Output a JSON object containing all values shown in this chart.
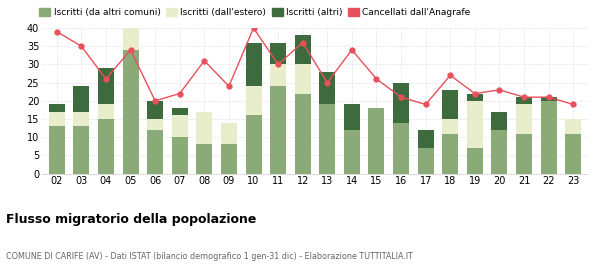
{
  "years": [
    "02",
    "03",
    "04",
    "05",
    "06",
    "07",
    "08",
    "09",
    "10",
    "11",
    "12",
    "13",
    "14",
    "15",
    "16",
    "17",
    "18",
    "19",
    "20",
    "21",
    "22",
    "23"
  ],
  "iscritti_altri_comuni": [
    13,
    13,
    15,
    34,
    12,
    10,
    8,
    8,
    16,
    24,
    22,
    19,
    12,
    18,
    14,
    7,
    11,
    7,
    12,
    11,
    20,
    11
  ],
  "iscritti_estero": [
    4,
    4,
    4,
    6,
    3,
    6,
    9,
    6,
    8,
    6,
    8,
    0,
    0,
    0,
    0,
    0,
    4,
    13,
    0,
    8,
    0,
    4
  ],
  "iscritti_altri": [
    2,
    7,
    10,
    0,
    5,
    2,
    0,
    0,
    12,
    6,
    8,
    9,
    7,
    0,
    11,
    5,
    8,
    2,
    5,
    2,
    1,
    0
  ],
  "cancellati": [
    39,
    35,
    26,
    34,
    20,
    22,
    31,
    24,
    40,
    30,
    36,
    25,
    34,
    26,
    21,
    19,
    27,
    22,
    23,
    21,
    21,
    19
  ],
  "color_altri_comuni": "#8aaa78",
  "color_estero": "#e8edcc",
  "color_altri": "#3d6b3d",
  "color_cancellati": "#e8505b",
  "legend_labels": [
    "Iscritti (da altri comuni)",
    "Iscritti (dall'estero)",
    "Iscritti (altri)",
    "Cancellati dall'Anagrafe"
  ],
  "title": "Flusso migratorio della popolazione",
  "subtitle": "COMUNE DI CARIFE (AV) - Dati ISTAT (bilancio demografico 1 gen-31 dic) - Elaborazione TUTTITALIA.IT",
  "ylim": [
    0,
    40
  ],
  "yticks": [
    0,
    5,
    10,
    15,
    20,
    25,
    30,
    35,
    40
  ]
}
